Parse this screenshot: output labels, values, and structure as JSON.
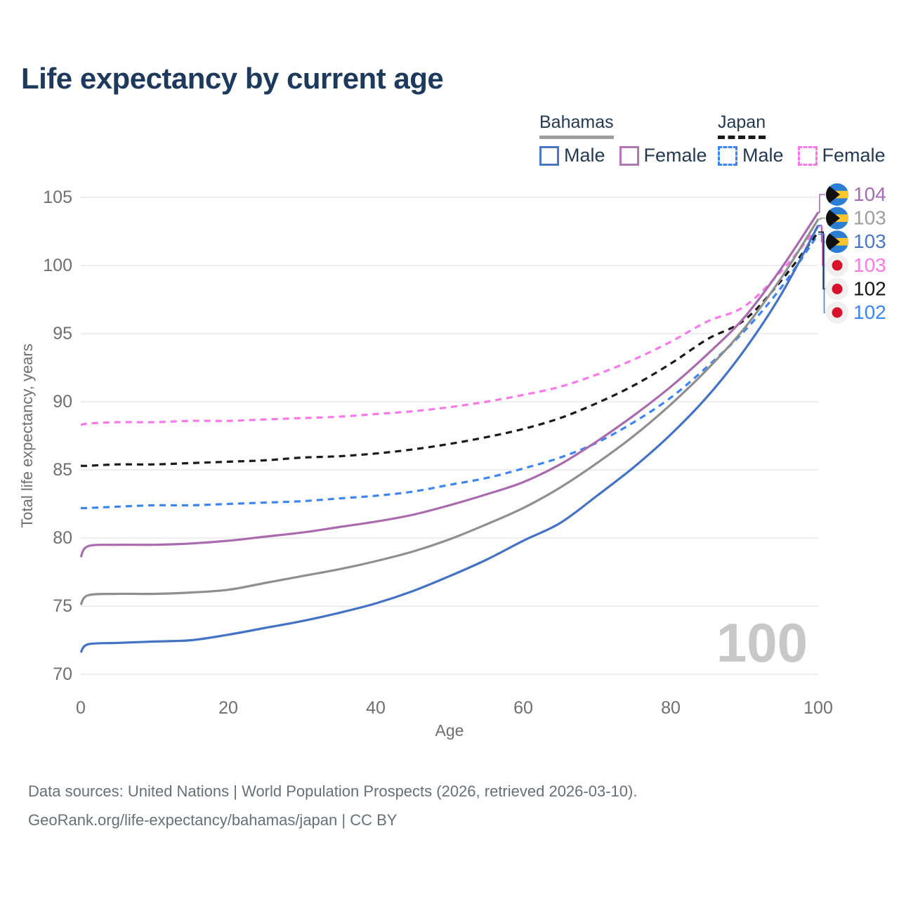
{
  "header": {
    "title": "Life expectancy by current age"
  },
  "legend": {
    "groups": [
      {
        "title": "Bahamas",
        "line_style": "solid",
        "underline_color": "#9e9e9e",
        "items": [
          {
            "label": "Male",
            "color": "#4a77c4",
            "dashed": false
          },
          {
            "label": "Female",
            "color": "#b277b2",
            "dashed": false
          }
        ]
      },
      {
        "title": "Japan",
        "line_style": "dashed",
        "underline_color": "#1a1a1a",
        "items": [
          {
            "label": "Male",
            "color": "#3d85f2",
            "dashed": true
          },
          {
            "label": "Female",
            "color": "#fb78ea",
            "dashed": true
          }
        ]
      }
    ]
  },
  "chart_data": {
    "type": "line",
    "title": "Life expectancy by current age",
    "xlabel": "Age",
    "ylabel": "Total life expectancy, years",
    "xlim": [
      0,
      100
    ],
    "ylim": [
      70,
      105
    ],
    "xticks": [
      0,
      20,
      40,
      60,
      80,
      100
    ],
    "yticks": [
      70,
      75,
      80,
      85,
      90,
      95,
      100,
      105
    ],
    "grid": "horizontal",
    "legend_position": "top-right",
    "watermark": "100",
    "x": [
      0,
      1,
      5,
      10,
      15,
      20,
      25,
      30,
      35,
      40,
      45,
      50,
      55,
      60,
      65,
      70,
      75,
      80,
      85,
      90,
      95,
      100
    ],
    "series": [
      {
        "name": "Bahamas Male",
        "country": "bahamas",
        "color": "#4472c4",
        "dashed": false,
        "values": [
          71.6,
          72.2,
          72.3,
          72.4,
          72.5,
          72.9,
          73.4,
          73.9,
          74.5,
          75.2,
          76.1,
          77.2,
          78.4,
          79.8,
          81.1,
          83.1,
          85.2,
          87.6,
          90.4,
          93.8,
          97.9,
          102.95
        ]
      },
      {
        "name": "Bahamas",
        "country": "bahamas",
        "color": "#8f8f8f",
        "dashed": false,
        "values": [
          75.1,
          75.8,
          75.9,
          75.9,
          76.0,
          76.2,
          76.7,
          77.2,
          77.7,
          78.3,
          79.0,
          79.9,
          81.0,
          82.2,
          83.7,
          85.5,
          87.5,
          89.8,
          92.4,
          95.4,
          99.1,
          103.4
        ]
      },
      {
        "name": "Bahamas Female",
        "country": "bahamas",
        "color": "#a96bae",
        "dashed": false,
        "values": [
          78.6,
          79.4,
          79.5,
          79.5,
          79.6,
          79.8,
          80.1,
          80.4,
          80.8,
          81.2,
          81.7,
          82.4,
          83.2,
          84.1,
          85.4,
          87.1,
          89.0,
          91.1,
          93.5,
          96.2,
          99.8,
          103.9
        ]
      },
      {
        "name": "Japan Male",
        "country": "japan",
        "color": "#3d85f2",
        "dashed": true,
        "values": [
          82.2,
          82.2,
          82.3,
          82.4,
          82.4,
          82.5,
          82.6,
          82.7,
          82.9,
          83.1,
          83.4,
          83.9,
          84.4,
          85.1,
          85.9,
          87.0,
          88.5,
          90.3,
          92.6,
          95.2,
          98.4,
          102.3
        ]
      },
      {
        "name": "Japan",
        "country": "japan",
        "color": "#1a1a1a",
        "dashed": true,
        "values": [
          85.3,
          85.3,
          85.4,
          85.4,
          85.5,
          85.6,
          85.7,
          85.9,
          86.0,
          86.2,
          86.5,
          86.9,
          87.4,
          88.0,
          88.8,
          89.9,
          91.2,
          92.8,
          94.6,
          96.0,
          98.9,
          102.45
        ]
      },
      {
        "name": "Japan Female",
        "country": "japan",
        "color": "#fb78ea",
        "dashed": true,
        "values": [
          88.3,
          88.4,
          88.5,
          88.5,
          88.6,
          88.6,
          88.7,
          88.8,
          88.9,
          89.1,
          89.3,
          89.6,
          90.0,
          90.5,
          91.1,
          92.0,
          93.1,
          94.4,
          95.9,
          97.0,
          99.6,
          102.85
        ]
      }
    ],
    "end_labels": [
      {
        "text": "104",
        "color": "#a46cb2",
        "flag": "bahamas",
        "series": 2
      },
      {
        "text": "103",
        "color": "#9e9e9e",
        "flag": "bahamas",
        "series": 1
      },
      {
        "text": "103",
        "color": "#4a77c4",
        "flag": "bahamas",
        "series": 0
      },
      {
        "text": "103",
        "color": "#f87ae8",
        "flag": "japan",
        "series": 5
      },
      {
        "text": "102",
        "color": "#141414",
        "flag": "japan",
        "series": 4
      },
      {
        "text": "102",
        "color": "#3d85f2",
        "flag": "japan",
        "series": 3
      }
    ],
    "flag_colors": {
      "bahamas_blue": "#2a7fd4",
      "bahamas_gold": "#fcc72e",
      "bahamas_black": "#101010",
      "japan_bg": "#f0f0f0",
      "japan_red": "#d8122c"
    }
  },
  "footer": {
    "line1": "Data sources: United Nations | World Population Prospects (2026, retrieved 2026-03-10).",
    "line2": "GeoRank.org/life-expectancy/bahamas/japan | CC BY"
  }
}
